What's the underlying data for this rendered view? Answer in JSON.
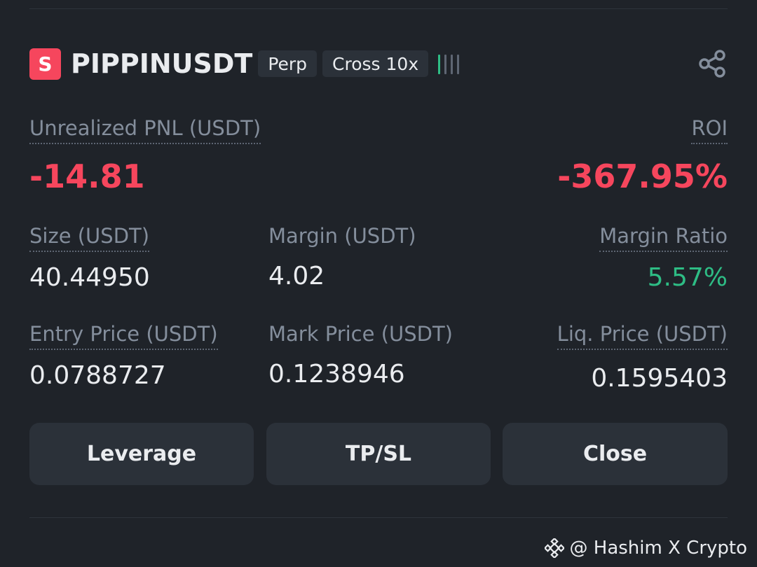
{
  "position": {
    "side_badge": "S",
    "symbol": "PIPPINUSDT",
    "contract_tag": "Perp",
    "margin_mode_tag": "Cross 10x",
    "risk_level": 1,
    "risk_bars_total": 4
  },
  "pnl": {
    "label": "Unrealized PNL (USDT)",
    "value": "-14.81"
  },
  "roi": {
    "label": "ROI",
    "value": "-367.95%"
  },
  "stats": {
    "size_label": "Size (USDT)",
    "size_value": "40.44950",
    "margin_label": "Margin (USDT)",
    "margin_value": "4.02",
    "margin_ratio_label": "Margin Ratio",
    "margin_ratio_value": "5.57%",
    "entry_label": "Entry Price (USDT)",
    "entry_value": "0.0788727",
    "mark_label": "Mark Price (USDT)",
    "mark_value": "0.1238946",
    "liq_label": "Liq. Price (USDT)",
    "liq_value": "0.1595403"
  },
  "actions": {
    "leverage_label": "Leverage",
    "tpsl_label": "TP/SL",
    "close_label": "Close"
  },
  "watermark": {
    "text": "@ Hashim X Crypto"
  },
  "colors": {
    "background": "#1f2329",
    "loss_red": "#f6465d",
    "profit_green": "#2ebd85",
    "muted_text": "#848e9c",
    "button_bg": "#2b3139"
  },
  "icons": {
    "share": "share-icon",
    "watermark_logo": "binance-logo-icon"
  }
}
